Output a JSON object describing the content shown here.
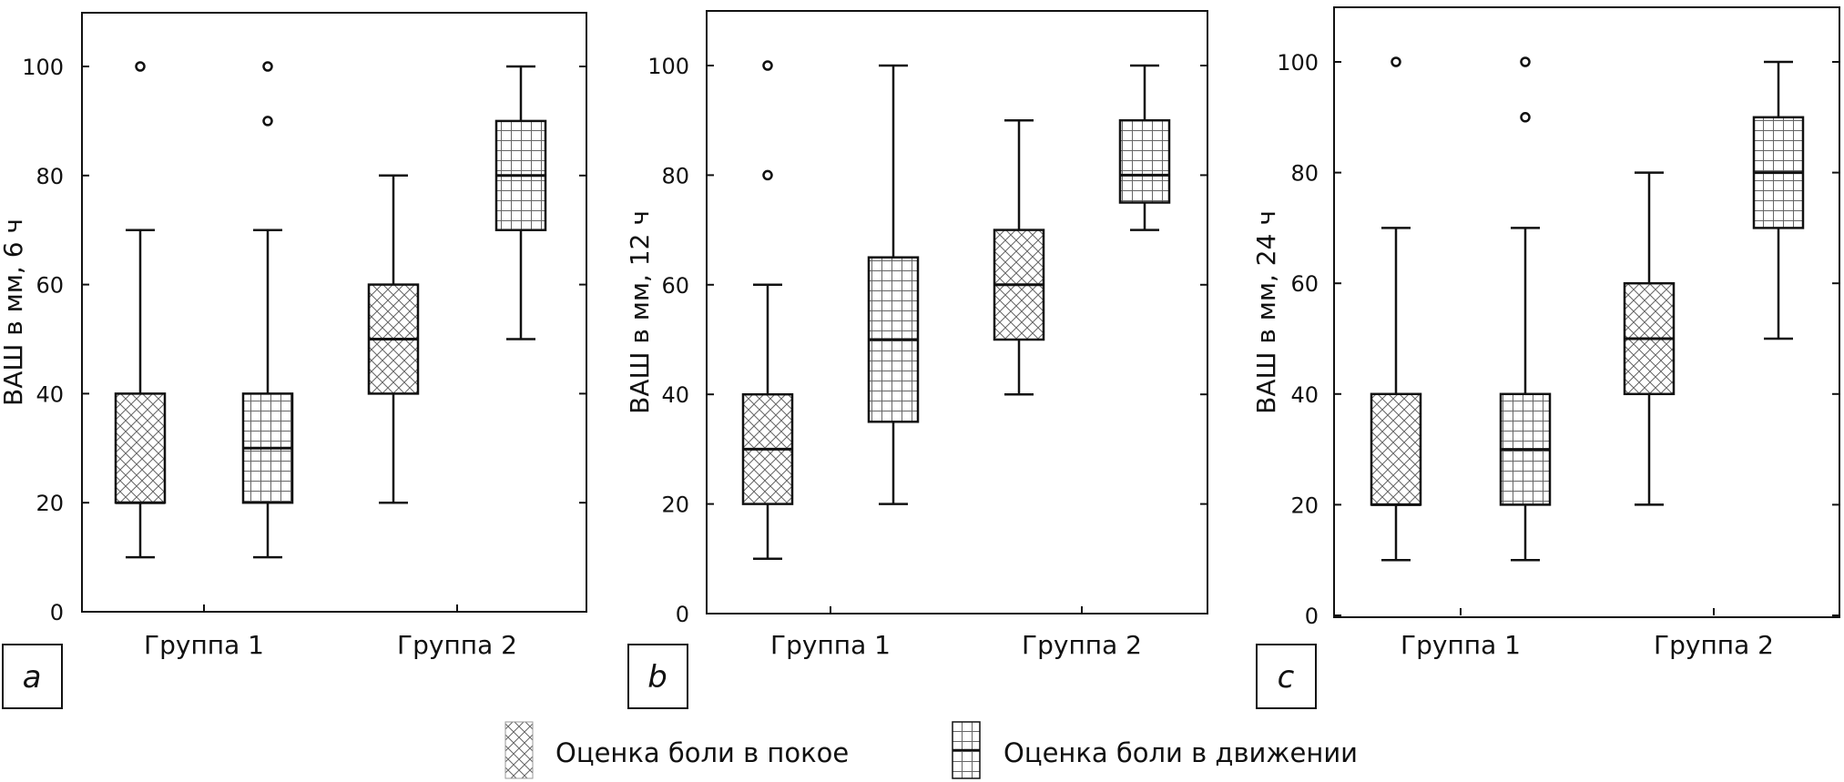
{
  "panels": [
    {
      "letter": "a",
      "chart_data": {
        "type": "boxplot",
        "ylabel": "ВАШ в мм, 6 ч",
        "ylim": [
          0,
          110
        ],
        "yticks": [
          "0",
          "20",
          "40",
          "60",
          "80",
          "100"
        ],
        "categories": [
          "Группа 1",
          "Группа 2"
        ],
        "boxes": [
          {
            "category": "Группа 1",
            "series": "Оценка боли в покое",
            "min": 10,
            "q1": 20,
            "median": 20,
            "q3": 40,
            "max": 70,
            "outliers": [
              100
            ]
          },
          {
            "category": "Группа 1",
            "series": "Оценка боли в движении",
            "min": 10,
            "q1": 20,
            "median": 30,
            "q3": 40,
            "max": 70,
            "outliers": [
              90,
              100
            ]
          },
          {
            "category": "Группа 2",
            "series": "Оценка боли в покое",
            "min": 20,
            "q1": 40,
            "median": 50,
            "q3": 60,
            "max": 80,
            "outliers": []
          },
          {
            "category": "Группа 2",
            "series": "Оценка боли в движении",
            "min": 50,
            "q1": 70,
            "median": 80,
            "q3": 90,
            "max": 100,
            "outliers": []
          }
        ]
      }
    },
    {
      "letter": "b",
      "chart_data": {
        "type": "boxplot",
        "ylabel": "ВАШ в мм, 12 ч",
        "ylim": [
          0,
          110
        ],
        "yticks": [
          "0",
          "20",
          "40",
          "60",
          "80",
          "100"
        ],
        "categories": [
          "Группа 1",
          "Группа 2"
        ],
        "boxes": [
          {
            "category": "Группа 1",
            "series": "Оценка боли в покое",
            "min": 10,
            "q1": 20,
            "median": 30,
            "q3": 40,
            "max": 60,
            "outliers": [
              80,
              100
            ]
          },
          {
            "category": "Группа 1",
            "series": "Оценка боли в движении",
            "min": 20,
            "q1": 35,
            "median": 50,
            "q3": 65,
            "max": 100,
            "outliers": []
          },
          {
            "category": "Группа 2",
            "series": "Оценка боли в покое",
            "min": 40,
            "q1": 50,
            "median": 60,
            "q3": 70,
            "max": 90,
            "outliers": []
          },
          {
            "category": "Группа 2",
            "series": "Оценка боли в движении",
            "min": 70,
            "q1": 75,
            "median": 80,
            "q3": 90,
            "max": 100,
            "outliers": []
          }
        ]
      }
    },
    {
      "letter": "c",
      "chart_data": {
        "type": "boxplot",
        "ylabel": "ВАШ в мм, 24 ч",
        "ylim": [
          0,
          110
        ],
        "yticks": [
          "0",
          "20",
          "40",
          "60",
          "80",
          "100"
        ],
        "categories": [
          "Группа 1",
          "Группа 2"
        ],
        "boxes": [
          {
            "category": "Группа 1",
            "series": "Оценка боли в покое",
            "min": 10,
            "q1": 20,
            "median": 20,
            "q3": 40,
            "max": 70,
            "outliers": [
              100
            ]
          },
          {
            "category": "Группа 1",
            "series": "Оценка боли в движении",
            "min": 10,
            "q1": 20,
            "median": 30,
            "q3": 40,
            "max": 70,
            "outliers": [
              90,
              100
            ]
          },
          {
            "category": "Группа 2",
            "series": "Оценка боли в покое",
            "min": 20,
            "q1": 40,
            "median": 50,
            "q3": 60,
            "max": 80,
            "outliers": []
          },
          {
            "category": "Группа 2",
            "series": "Оценка боли в движении",
            "min": 50,
            "q1": 70,
            "median": 80,
            "q3": 90,
            "max": 100,
            "outliers": []
          }
        ]
      }
    }
  ],
  "legend": [
    {
      "label": "Оценка боли в покое",
      "pattern": "crosshatch"
    },
    {
      "label": "Оценка боли в движении",
      "pattern": "grid"
    }
  ],
  "colors": {
    "ink": "#111111",
    "background": "#ffffff"
  }
}
